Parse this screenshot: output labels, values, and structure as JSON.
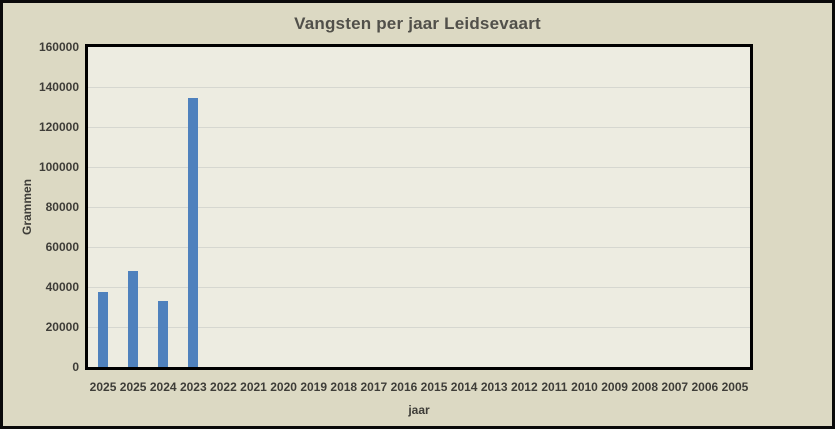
{
  "chart_data": {
    "type": "bar",
    "title": "Vangsten per jaar Leidsevaart",
    "xlabel": "jaar",
    "ylabel": "Grammen",
    "categories": [
      "2025",
      "2025",
      "2024",
      "2023",
      "2022",
      "2021",
      "2020",
      "2019",
      "2018",
      "2017",
      "2016",
      "2015",
      "2014",
      "2013",
      "2012",
      "2011",
      "2010",
      "2009",
      "2008",
      "2007",
      "2006",
      "2005"
    ],
    "values": [
      37500,
      48000,
      33000,
      134500,
      0,
      0,
      0,
      0,
      0,
      0,
      0,
      0,
      0,
      0,
      0,
      0,
      0,
      0,
      0,
      0,
      0,
      0
    ],
    "ylim": [
      0,
      160000
    ],
    "ytick_step": 20000,
    "ytick_labels": [
      "160000",
      "140000",
      "120000",
      "100000",
      "80000",
      "60000",
      "40000",
      "20000",
      "0"
    ],
    "grid": "horizontal",
    "legend": "none",
    "colors": {
      "bar": "#4f81bd",
      "chart_background": "#dcd9c3",
      "plot_background": "#edece1",
      "gridline": "#d6d7d0",
      "text": "#3e3d38",
      "title_text": "#51504a",
      "border": "#000000"
    }
  }
}
